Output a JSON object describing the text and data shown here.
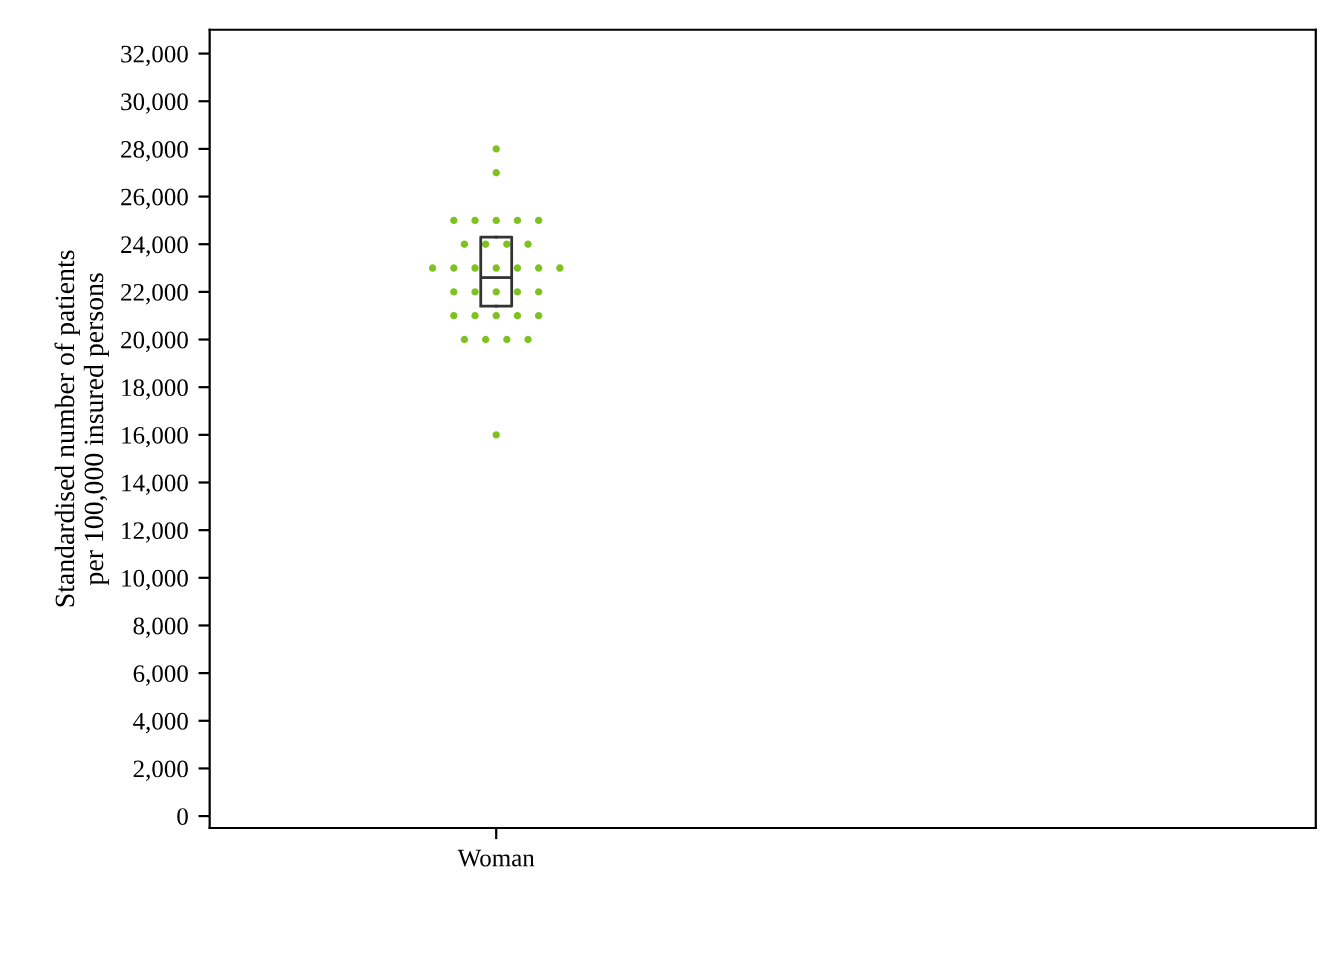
{
  "chart_data": {
    "type": "box",
    "ylabel": "Standardised number of patients\nper 100,000 insured persons",
    "categories": [
      "Woman"
    ],
    "boxes": [
      {
        "low": 21400,
        "q1": 21400,
        "median": 22600,
        "q3": 24300,
        "high": 24300
      }
    ],
    "series": [
      {
        "type": "scatter",
        "color": "#7dc21e",
        "x": [
          "Woman",
          "Woman",
          "Woman",
          "Woman",
          "Woman",
          "Woman",
          "Woman",
          "Woman",
          "Woman",
          "Woman",
          "Woman",
          "Woman",
          "Woman",
          "Woman",
          "Woman",
          "Woman",
          "Woman",
          "Woman",
          "Woman",
          "Woman",
          "Woman",
          "Woman",
          "Woman",
          "Woman",
          "Woman",
          "Woman",
          "Woman",
          "Woman",
          "Woman",
          "Woman",
          "Woman",
          "Woman",
          "Woman"
        ],
        "values": [
          28000,
          27000,
          25000,
          25000,
          25000,
          25000,
          25000,
          24000,
          24000,
          24000,
          24000,
          23000,
          23000,
          23000,
          23000,
          23000,
          23000,
          23000,
          22000,
          22000,
          22000,
          22000,
          22000,
          21000,
          21000,
          21000,
          21000,
          21000,
          20000,
          20000,
          20000,
          20000,
          16000
        ]
      }
    ],
    "ylim": [
      -500,
      33000
    ],
    "yticks": [
      {
        "value": 0,
        "label": "0"
      },
      {
        "value": 2000,
        "label": "2,000"
      },
      {
        "value": 4000,
        "label": "4,000"
      },
      {
        "value": 6000,
        "label": "6,000"
      },
      {
        "value": 8000,
        "label": "8,000"
      },
      {
        "value": 10000,
        "label": "10,000"
      },
      {
        "value": 12000,
        "label": "12,000"
      },
      {
        "value": 14000,
        "label": "14,000"
      },
      {
        "value": 16000,
        "label": "16,000"
      },
      {
        "value": 18000,
        "label": "18,000"
      },
      {
        "value": 20000,
        "label": "20,000"
      },
      {
        "value": 22000,
        "label": "22,000"
      },
      {
        "value": 24000,
        "label": "24,000"
      },
      {
        "value": 26000,
        "label": "26,000"
      },
      {
        "value": 28000,
        "label": "28,000"
      },
      {
        "value": 30000,
        "label": "30,000"
      },
      {
        "value": 32000,
        "label": "32,000"
      }
    ],
    "grid": false,
    "marker": "circle"
  }
}
